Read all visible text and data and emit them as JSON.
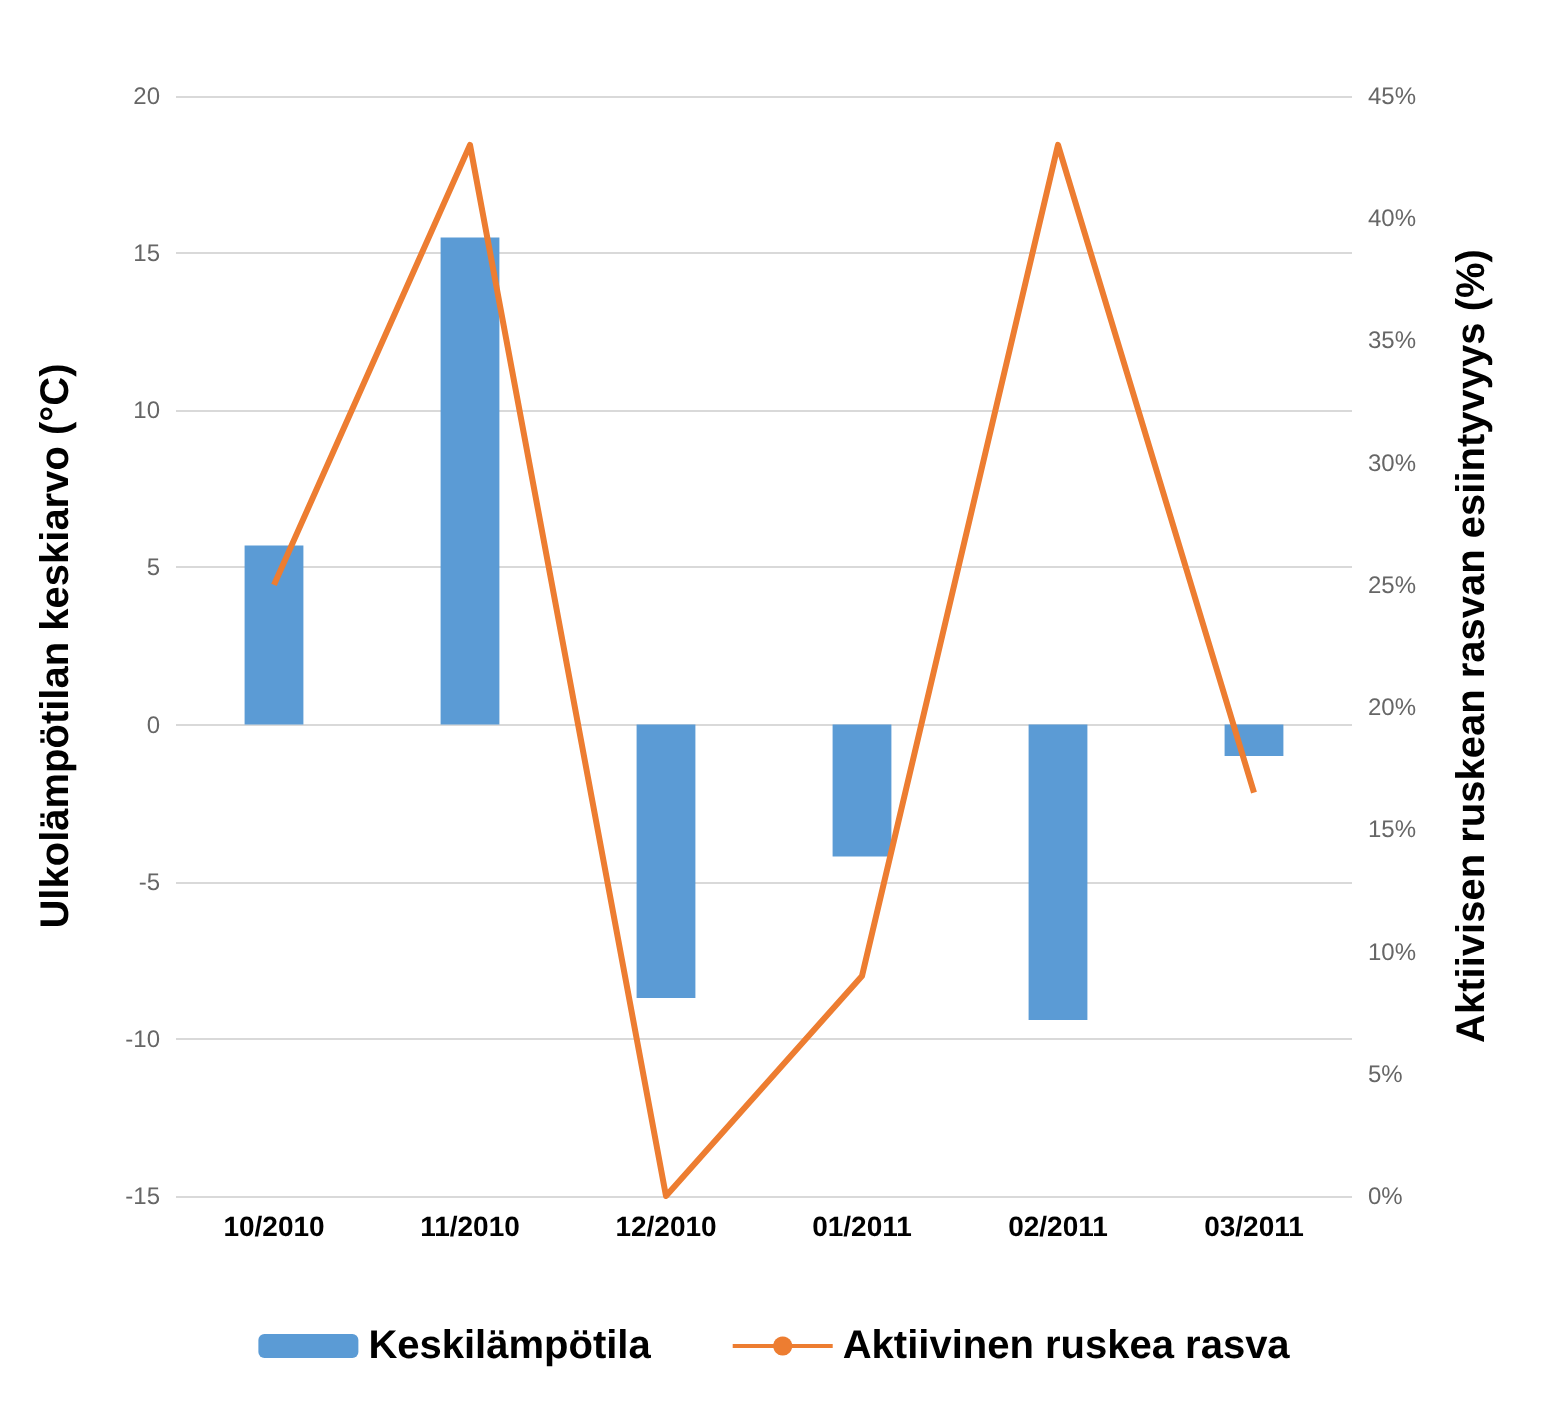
{
  "chart_data": {
    "type": "bar",
    "categories": [
      "10/2010",
      "11/2010",
      "12/2010",
      "01/2011",
      "02/2011",
      "03/2011"
    ],
    "ylabel": "Ulkolämpötilan keskiarvo (°C)",
    "y2label": "Aktiivisen ruskean rasvan esiintyvyys (%)",
    "series": [
      {
        "name": "Keskilämpötila",
        "color": "#5b9bd5",
        "values": [
          5.7,
          15.5,
          -8.7,
          -4.2,
          -9.4,
          -1.0
        ]
      },
      {
        "name": "Aktiivinen ruskea rasva",
        "type": "line",
        "axis": "y2",
        "color": "#ed7d31",
        "values": [
          25,
          43,
          0,
          9,
          43,
          16.5
        ]
      }
    ],
    "ylim": [
      -15,
      20
    ],
    "yticks": [
      -15,
      -10,
      -5,
      0,
      5,
      10,
      15,
      20
    ],
    "y2lim": [
      0,
      45
    ],
    "y2ticks": [
      {
        "value": 0,
        "label": "0%"
      },
      {
        "value": 5,
        "label": "5%"
      },
      {
        "value": 10,
        "label": "10%"
      },
      {
        "value": 15,
        "label": "15%"
      },
      {
        "value": 20,
        "label": "20%"
      },
      {
        "value": 25,
        "label": "25%"
      },
      {
        "value": 30,
        "label": "30%"
      },
      {
        "value": 35,
        "label": "35%"
      },
      {
        "value": 40,
        "label": "40%"
      },
      {
        "value": 45,
        "label": "45%"
      }
    ],
    "grid": "y",
    "legend": "bottom",
    "marker": "none",
    "line_style": "solid"
  }
}
